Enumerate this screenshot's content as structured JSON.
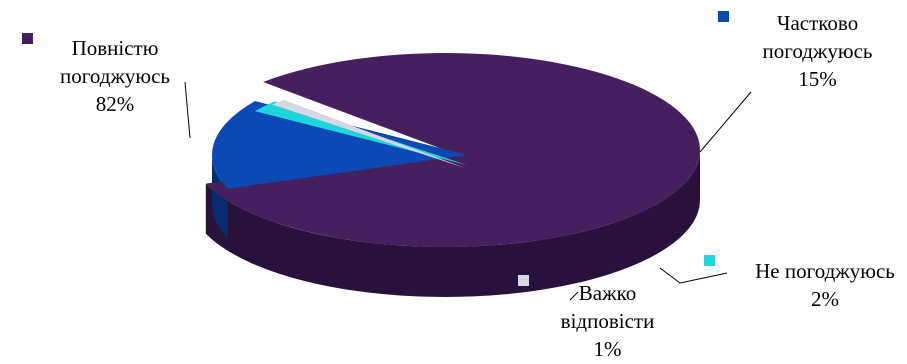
{
  "chart_data": {
    "type": "pie",
    "title": "",
    "legend_position": "labels-with-markers",
    "categories": [
      "Повністю погоджуюсь",
      "Частково погоджуюсь",
      "Не погоджуюсь",
      "Важко відповісти"
    ],
    "values": [
      82,
      15,
      2,
      1
    ],
    "value_labels": [
      "82%",
      "15%",
      "2%",
      "1%"
    ],
    "label_lines": [
      [
        "Повністю",
        "погоджуюсь",
        "82%"
      ],
      [
        "Частково",
        "погоджуюсь",
        "15%"
      ],
      [
        "Не погоджуюсь",
        "2%"
      ],
      [
        "Важко",
        "відповісти",
        "1%"
      ]
    ],
    "colors": [
      "#45205e",
      "#0c4ab3",
      "#1ed5dc",
      "#d8d8e4"
    ],
    "side_colors": [
      "#28113a",
      "#062b6e",
      "#0d6e70",
      "#5a5a5e"
    ]
  }
}
